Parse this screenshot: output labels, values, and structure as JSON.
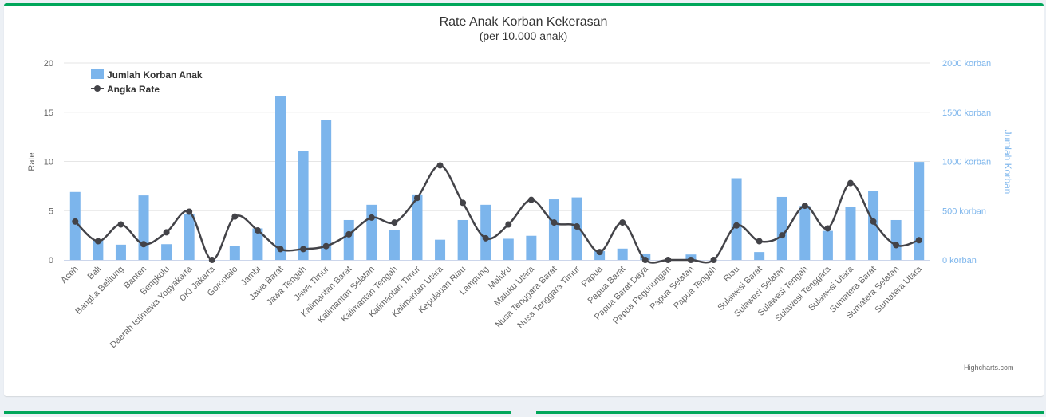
{
  "chart_data": {
    "type": "bar",
    "title": "Rate Anak Korban Kekerasan",
    "subtitle": "(per 10.000 anak)",
    "y_left_label": "Rate",
    "y_right_label": "Jumlah Korban",
    "y_left_ticks": [
      "0",
      "5",
      "10",
      "15",
      "20"
    ],
    "y_right_ticks": [
      "0 korban",
      "500 korban",
      "1000 korban",
      "1500 korban",
      "2000 korban"
    ],
    "y_left_range": [
      0,
      20
    ],
    "y_right_range": [
      0,
      2000
    ],
    "grid": true,
    "legend_position": "top-left",
    "categories": [
      "Aceh",
      "Bali",
      "Bangka Belitung",
      "Banten",
      "Bengkulu",
      "Daerah Istimewa Yogyakarta",
      "DKI Jakarta",
      "Gorontalo",
      "Jambi",
      "Jawa Barat",
      "Jawa Tengah",
      "Jawa Timur",
      "Kalimantan Barat",
      "Kalimantan Selatan",
      "Kalimantan Tengah",
      "Kalimantan Timur",
      "Kalimantan Utara",
      "Kepulauan Riau",
      "Lampung",
      "Maluku",
      "Maluku Utara",
      "Nusa Tenggara Barat",
      "Nusa Tenggara Timur",
      "Papua",
      "Papua Barat",
      "Papua Barat Daya",
      "Papua Pegunungan",
      "Papua Selatan",
      "Papua Tengah",
      "Riau",
      "Sulawesi Barat",
      "Sulawesi Selatan",
      "Sulawesi Tengah",
      "Sulawesi Tenggara",
      "Sulawesi Utara",
      "Sumatera Barat",
      "Sumatera Selatan",
      "Sumatera Utara"
    ],
    "series": [
      {
        "name": "Jumlah Korban Anak",
        "type": "column",
        "axis": "right",
        "color": "#7cb5ec",
        "values": [
          690,
          200,
          155,
          655,
          160,
          470,
          0,
          145,
          320,
          1665,
          1105,
          1425,
          405,
          560,
          300,
          665,
          205,
          405,
          560,
          215,
          245,
          615,
          635,
          90,
          115,
          65,
          0,
          55,
          0,
          830,
          80,
          640,
          550,
          295,
          535,
          700,
          405,
          995
        ]
      },
      {
        "name": "Angka Rate",
        "type": "spline",
        "axis": "left",
        "color": "#434348",
        "values": [
          3.9,
          1.9,
          3.6,
          1.6,
          2.8,
          4.9,
          0.0,
          4.4,
          3.0,
          1.1,
          1.1,
          1.4,
          2.6,
          4.3,
          3.8,
          6.3,
          9.6,
          5.8,
          2.2,
          3.6,
          6.1,
          3.8,
          3.4,
          0.8,
          3.8,
          0.0,
          0.0,
          0.0,
          0.0,
          3.5,
          1.9,
          2.5,
          5.5,
          3.2,
          7.8,
          3.9,
          1.5,
          2.0
        ]
      }
    ]
  },
  "credits": "Highcharts.com",
  "colors": {
    "accent": "#00a65a",
    "right_axis": "#7cb5ec"
  }
}
